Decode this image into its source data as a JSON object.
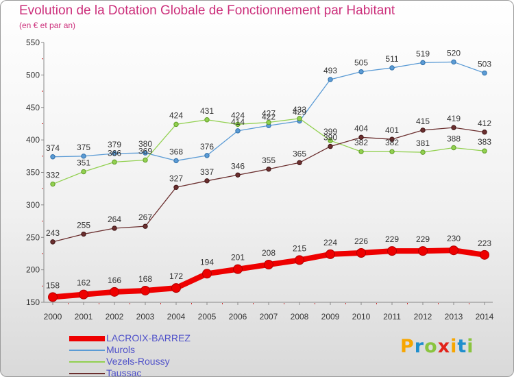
{
  "chart_data": {
    "type": "line",
    "title": "Evolution de la Dotation Globale de Fonctionnement par Habitant",
    "subtitle": "(en € et par an)",
    "xlabel": "",
    "ylabel": "",
    "x": [
      "2000",
      "2001",
      "2002",
      "2003",
      "2004",
      "2005",
      "2006",
      "2007",
      "2008",
      "2009",
      "2010",
      "2011",
      "2012",
      "2013",
      "2014"
    ],
    "ylim": [
      150,
      550
    ],
    "yticks": [
      150,
      200,
      250,
      300,
      350,
      400,
      450,
      500,
      550
    ],
    "grid": false,
    "legend_position": "bottom-left",
    "series": [
      {
        "name": "LACROIX-BARREZ",
        "color": "#ee0000",
        "values": [
          158,
          162,
          166,
          168,
          172,
          194,
          201,
          208,
          215,
          224,
          226,
          229,
          229,
          230,
          223
        ]
      },
      {
        "name": "Murols",
        "color": "#5b9bd5",
        "values": [
          374,
          375,
          379,
          380,
          368,
          376,
          414,
          422,
          429,
          493,
          505,
          511,
          519,
          520,
          503
        ]
      },
      {
        "name": "Vezels-Roussy",
        "color": "#92d050",
        "values": [
          332,
          351,
          366,
          369,
          424,
          431,
          424,
          427,
          433,
          399,
          382,
          382,
          381,
          388,
          383
        ]
      },
      {
        "name": "Taussac",
        "color": "#6b2f2f",
        "values": [
          243,
          255,
          264,
          267,
          327,
          337,
          346,
          355,
          365,
          390,
          404,
          401,
          415,
          419,
          412
        ]
      }
    ]
  },
  "logo": {
    "text": "Proxiti",
    "letters": [
      "P",
      "r",
      "o",
      "x",
      "i",
      "t",
      "i"
    ],
    "colors": [
      "#f7a600",
      "#1f8ecd",
      "#8ac43f",
      "#e2231a",
      "#f7a600",
      "#1f8ecd",
      "#8ac43f"
    ]
  }
}
